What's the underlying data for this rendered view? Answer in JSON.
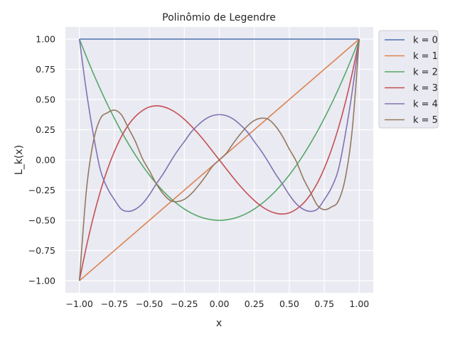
{
  "chart_data": {
    "type": "line",
    "title": "Polinômio de Legendre",
    "xlabel": "x",
    "ylabel": "L_k(x)",
    "xlim": [
      -1.1,
      1.1
    ],
    "ylim": [
      -1.1,
      1.1
    ],
    "x_ticks": [
      -1.0,
      -0.75,
      -0.5,
      -0.25,
      0.0,
      0.25,
      0.5,
      0.75,
      1.0
    ],
    "x_tick_labels": [
      "−1.00",
      "−0.75",
      "−0.50",
      "−0.25",
      "0.00",
      "0.25",
      "0.50",
      "0.75",
      "1.00"
    ],
    "y_ticks": [
      -1.0,
      -0.75,
      -0.5,
      -0.25,
      0.0,
      0.25,
      0.5,
      0.75,
      1.0
    ],
    "y_tick_labels": [
      "−1.00",
      "−0.75",
      "−0.50",
      "−0.25",
      "0.00",
      "0.25",
      "0.50",
      "0.75",
      "1.00"
    ],
    "grid": true,
    "legend_position": "outside-top-right",
    "x": [
      -1.0,
      -0.95,
      -0.9,
      -0.85,
      -0.8,
      -0.75,
      -0.7,
      -0.65,
      -0.6,
      -0.55,
      -0.5,
      -0.45,
      -0.4,
      -0.35,
      -0.3,
      -0.25,
      -0.2,
      -0.15,
      -0.1,
      -0.05,
      0.0,
      0.05,
      0.1,
      0.15,
      0.2,
      0.25,
      0.3,
      0.35,
      0.4,
      0.45,
      0.5,
      0.55,
      0.6,
      0.65,
      0.7,
      0.75,
      0.8,
      0.85,
      0.9,
      0.95,
      1.0
    ],
    "series": [
      {
        "name": "k = 0",
        "color": "#4c72b0",
        "values": [
          1,
          1,
          1,
          1,
          1,
          1,
          1,
          1,
          1,
          1,
          1,
          1,
          1,
          1,
          1,
          1,
          1,
          1,
          1,
          1,
          1,
          1,
          1,
          1,
          1,
          1,
          1,
          1,
          1,
          1,
          1,
          1,
          1,
          1,
          1,
          1,
          1,
          1,
          1,
          1,
          1
        ]
      },
      {
        "name": "k = 1",
        "color": "#dd8452",
        "values": [
          -1.0,
          -0.95,
          -0.9,
          -0.85,
          -0.8,
          -0.75,
          -0.7,
          -0.65,
          -0.6,
          -0.55,
          -0.5,
          -0.45,
          -0.4,
          -0.35,
          -0.3,
          -0.25,
          -0.2,
          -0.15,
          -0.1,
          -0.05,
          0.0,
          0.05,
          0.1,
          0.15,
          0.2,
          0.25,
          0.3,
          0.35,
          0.4,
          0.45,
          0.5,
          0.55,
          0.6,
          0.65,
          0.7,
          0.75,
          0.8,
          0.85,
          0.9,
          0.95,
          1.0
        ]
      },
      {
        "name": "k = 2",
        "color": "#55a868",
        "values": [
          1.0,
          0.854,
          0.715,
          0.584,
          0.46,
          0.344,
          0.235,
          0.134,
          0.04,
          -0.046,
          -0.125,
          -0.196,
          -0.26,
          -0.316,
          -0.365,
          -0.406,
          -0.44,
          -0.466,
          -0.485,
          -0.496,
          -0.5,
          -0.496,
          -0.485,
          -0.466,
          -0.44,
          -0.406,
          -0.365,
          -0.316,
          -0.26,
          -0.196,
          -0.125,
          -0.046,
          0.04,
          0.134,
          0.235,
          0.344,
          0.46,
          0.584,
          0.715,
          0.854,
          1.0
        ]
      },
      {
        "name": "k = 3",
        "color": "#c44e52",
        "values": [
          -1.0,
          -0.718,
          -0.472,
          -0.26,
          -0.08,
          0.07,
          0.193,
          0.289,
          0.36,
          0.408,
          0.438,
          0.448,
          0.44,
          0.418,
          0.383,
          0.336,
          0.28,
          0.217,
          0.148,
          0.074,
          0.0,
          -0.074,
          -0.148,
          -0.217,
          -0.28,
          -0.336,
          -0.383,
          -0.418,
          -0.44,
          -0.448,
          -0.438,
          -0.408,
          -0.36,
          -0.289,
          -0.193,
          -0.07,
          0.08,
          0.26,
          0.472,
          0.718,
          1.0
        ]
      },
      {
        "name": "k = 4",
        "color": "#8172b3",
        "values": [
          1.0,
          0.568,
          0.208,
          -0.084,
          -0.233,
          -0.329,
          -0.408,
          -0.426,
          -0.408,
          -0.363,
          -0.289,
          -0.198,
          -0.113,
          -0.017,
          0.073,
          0.152,
          0.232,
          0.291,
          0.338,
          0.366,
          0.375,
          0.366,
          0.338,
          0.291,
          0.232,
          0.152,
          0.073,
          -0.017,
          -0.113,
          -0.198,
          -0.289,
          -0.363,
          -0.408,
          -0.426,
          -0.408,
          -0.329,
          -0.233,
          -0.084,
          0.208,
          0.568,
          1.0
        ]
      },
      {
        "name": "k = 5",
        "color": "#937860",
        "values": [
          -1.0,
          -0.252,
          0.153,
          0.342,
          0.39,
          0.412,
          0.374,
          0.264,
          0.153,
          0.012,
          -0.09,
          -0.198,
          -0.282,
          -0.336,
          -0.345,
          -0.326,
          -0.28,
          -0.214,
          -0.138,
          -0.055,
          0.0,
          0.055,
          0.138,
          0.214,
          0.28,
          0.326,
          0.345,
          0.336,
          0.282,
          0.198,
          0.09,
          -0.012,
          -0.153,
          -0.264,
          -0.374,
          -0.412,
          -0.39,
          -0.342,
          -0.153,
          0.252,
          1.0
        ]
      }
    ]
  }
}
